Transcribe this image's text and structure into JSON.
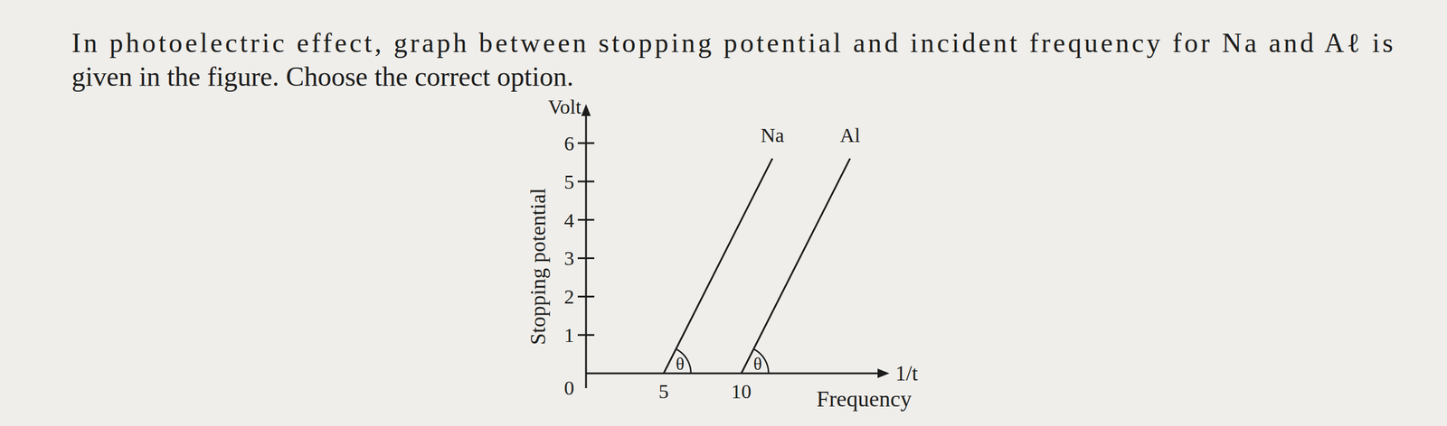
{
  "question": [
    "In photoelectric effect, graph between stopping potential and incident frequency for Na and Aℓ is",
    "given in the figure. Choose the correct option."
  ],
  "chart_data": {
    "type": "line",
    "ylabel": "Stopping potential",
    "yunit": "Volt",
    "xlabel": "Frequency",
    "xunit": "1/t",
    "series": [
      {
        "name": "Na",
        "color": "#1c1c1c",
        "x": [
          5,
          12
        ],
        "values": [
          0,
          5.6
        ]
      },
      {
        "name": "Al",
        "color": "#1c1c1c",
        "x": [
          10,
          17
        ],
        "values": [
          0,
          5.6
        ]
      }
    ],
    "annotations": [
      "θ",
      "θ"
    ],
    "xlim": [
      0,
      19
    ],
    "xticks": [
      5,
      10
    ],
    "ylim": [
      0,
      6.8
    ],
    "yticks": [
      0,
      1,
      2,
      3,
      4,
      5,
      6
    ],
    "grid": false
  }
}
